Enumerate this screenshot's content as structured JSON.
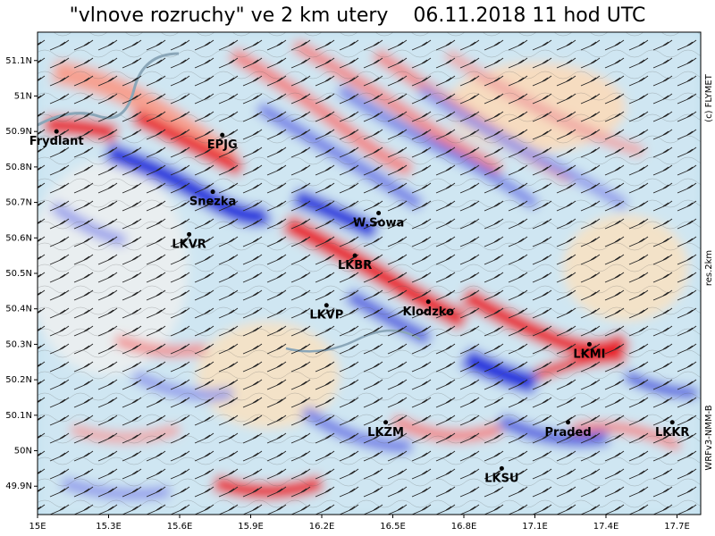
{
  "title": "\"vlnove rozruchy\" ve 2 km utery    06.11.2018 11 hod UTC",
  "side_labels": {
    "credit": "(c) FLYMET",
    "resolution": "res.2km",
    "model": "WRFv3-NMM-B"
  },
  "map": {
    "lon_range": [
      15.0,
      17.8
    ],
    "lat_range": [
      49.82,
      51.18
    ],
    "lat_ticks": [
      {
        "value": 51.1,
        "label": "51.1N"
      },
      {
        "value": 51.0,
        "label": "51N"
      },
      {
        "value": 50.9,
        "label": "50.9N"
      },
      {
        "value": 50.8,
        "label": "50.8N"
      },
      {
        "value": 50.7,
        "label": "50.7N"
      },
      {
        "value": 50.6,
        "label": "50.6N"
      },
      {
        "value": 50.5,
        "label": "50.5N"
      },
      {
        "value": 50.4,
        "label": "50.4N"
      },
      {
        "value": 50.3,
        "label": "50.3N"
      },
      {
        "value": 50.2,
        "label": "50.2N"
      },
      {
        "value": 50.1,
        "label": "50.1N"
      },
      {
        "value": 50.0,
        "label": "50N"
      },
      {
        "value": 49.9,
        "label": "49.9N"
      }
    ],
    "lon_ticks": [
      {
        "value": 15.0,
        "label": "15E"
      },
      {
        "value": 15.3,
        "label": "15.3E"
      },
      {
        "value": 15.6,
        "label": "15.6E"
      },
      {
        "value": 15.9,
        "label": "15.9E"
      },
      {
        "value": 16.2,
        "label": "16.2E"
      },
      {
        "value": 16.5,
        "label": "16.5E"
      },
      {
        "value": 16.8,
        "label": "16.8E"
      },
      {
        "value": 17.1,
        "label": "17.1E"
      },
      {
        "value": 17.4,
        "label": "17.4E"
      },
      {
        "value": 17.7,
        "label": "17.7E"
      }
    ],
    "places": [
      {
        "name": "Frydlant",
        "lon": 15.08,
        "lat": 50.9
      },
      {
        "name": "EPJG",
        "lon": 15.78,
        "lat": 50.89
      },
      {
        "name": "Snezka",
        "lon": 15.74,
        "lat": 50.73
      },
      {
        "name": "LKVR",
        "lon": 15.64,
        "lat": 50.61
      },
      {
        "name": "W.Sowa",
        "lon": 16.44,
        "lat": 50.67
      },
      {
        "name": "LKBR",
        "lon": 16.34,
        "lat": 50.55
      },
      {
        "name": "LKVP",
        "lon": 16.22,
        "lat": 50.41
      },
      {
        "name": "Klodzko",
        "lon": 16.65,
        "lat": 50.42
      },
      {
        "name": "LKMI",
        "lon": 17.33,
        "lat": 50.3
      },
      {
        "name": "LKZM",
        "lon": 16.47,
        "lat": 50.08
      },
      {
        "name": "Praded",
        "lon": 17.24,
        "lat": 50.08
      },
      {
        "name": "LKKR",
        "lon": 17.68,
        "lat": 50.08
      },
      {
        "name": "LKSU",
        "lon": 16.96,
        "lat": 49.95
      }
    ],
    "colors": {
      "updraft": "#e8242a",
      "downdraft": "#2233dd",
      "neutral": "#bfe0f0",
      "river": "#8aa6b8"
    }
  }
}
